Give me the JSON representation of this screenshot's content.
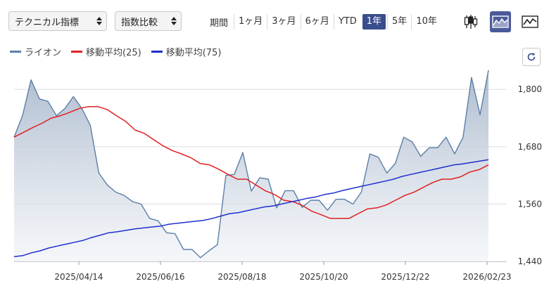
{
  "controls": {
    "technical_select": "テクニカル指標",
    "compare_select": "指数比較",
    "period_label": "期間",
    "periods": [
      {
        "label": "1ヶ月",
        "active": false
      },
      {
        "label": "3ヶ月",
        "active": false
      },
      {
        "label": "6ヶ月",
        "active": false
      },
      {
        "label": "YTD",
        "active": false
      },
      {
        "label": "1年",
        "active": true
      },
      {
        "label": "5年",
        "active": false
      },
      {
        "label": "10年",
        "active": false
      }
    ],
    "chart_type_buttons": [
      {
        "icon": "candlestick-icon",
        "active": false
      },
      {
        "icon": "area-chart-icon",
        "active": true
      },
      {
        "icon": "line-chart-icon",
        "active": false
      }
    ],
    "refresh_icon": "refresh-icon"
  },
  "colors": {
    "price": "#5b7fa6",
    "ma25": "#e02020",
    "ma75": "#1f2fcc",
    "accent": "#3a4d8c"
  },
  "chart_data": {
    "type": "area",
    "x_ticks": [
      "2025/04/14",
      "2025/06/16",
      "2025/08/18",
      "2025/10/20",
      "2025/12/22",
      "2026/02/23"
    ],
    "ylim": [
      1440,
      1840
    ],
    "y_ticks": [
      1440,
      1560,
      1680,
      1800
    ],
    "y_tick_labels": [
      "1,440",
      "1,560",
      "1,680",
      "1,800"
    ],
    "grid": true,
    "legend_position": "top-left",
    "series": [
      {
        "name": "ライオン",
        "style": "area",
        "values": [
          1700,
          1745,
          1820,
          1780,
          1775,
          1745,
          1760,
          1785,
          1760,
          1725,
          1625,
          1600,
          1585,
          1578,
          1565,
          1560,
          1530,
          1525,
          1500,
          1498,
          1465,
          1465,
          1448,
          1462,
          1475,
          1620,
          1622,
          1668,
          1587,
          1615,
          1612,
          1552,
          1588,
          1588,
          1553,
          1568,
          1568,
          1547,
          1570,
          1570,
          1560,
          1585,
          1665,
          1658,
          1625,
          1645,
          1700,
          1690,
          1660,
          1678,
          1678,
          1700,
          1665,
          1700,
          1825,
          1747,
          1840
        ]
      },
      {
        "name": "移動平均(25)",
        "style": "line",
        "values": [
          1700,
          1710,
          1720,
          1729,
          1740,
          1745,
          1752,
          1760,
          1764,
          1764,
          1758,
          1745,
          1733,
          1715,
          1708,
          1695,
          1682,
          1672,
          1665,
          1657,
          1645,
          1642,
          1633,
          1622,
          1612,
          1612,
          1600,
          1588,
          1580,
          1568,
          1565,
          1557,
          1545,
          1538,
          1530,
          1530,
          1530,
          1540,
          1550,
          1552,
          1558,
          1568,
          1578,
          1585,
          1595,
          1605,
          1612,
          1612,
          1617,
          1627,
          1632,
          1642
        ]
      },
      {
        "name": "移動平均(75)",
        "style": "line",
        "values": [
          1450,
          1452,
          1458,
          1462,
          1468,
          1472,
          1476,
          1480,
          1484,
          1490,
          1495,
          1500,
          1502,
          1505,
          1508,
          1510,
          1512,
          1514,
          1518,
          1520,
          1522,
          1524,
          1526,
          1530,
          1535,
          1540,
          1542,
          1546,
          1550,
          1554,
          1556,
          1560,
          1564,
          1568,
          1572,
          1575,
          1580,
          1583,
          1588,
          1592,
          1596,
          1600,
          1604,
          1608,
          1612,
          1618,
          1622,
          1626,
          1630,
          1634,
          1638,
          1642,
          1644,
          1647,
          1650,
          1653
        ]
      }
    ]
  }
}
